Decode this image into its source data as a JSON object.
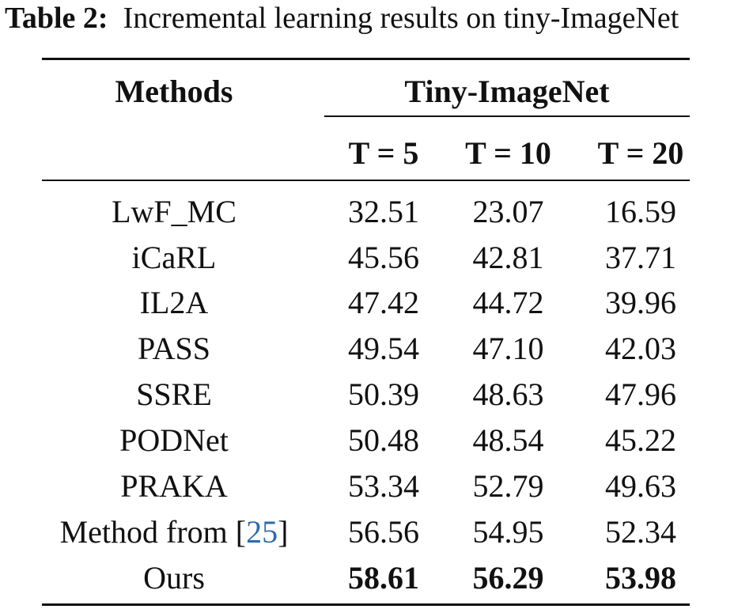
{
  "caption": {
    "label": "Table 2:",
    "text": "Incremental learning results on tiny-ImageNet"
  },
  "table": {
    "header": {
      "methods": "Methods",
      "group": "Tiny-ImageNet",
      "columns": [
        "T = 5",
        "T = 10",
        "T = 20"
      ]
    },
    "rows": [
      {
        "method": "LwF_MC",
        "values": [
          "32.51",
          "23.07",
          "16.59"
        ]
      },
      {
        "method": "iCaRL",
        "values": [
          "45.56",
          "42.81",
          "37.71"
        ]
      },
      {
        "method": "IL2A",
        "values": [
          "47.42",
          "44.72",
          "39.96"
        ]
      },
      {
        "method": "PASS",
        "values": [
          "49.54",
          "47.10",
          "42.03"
        ]
      },
      {
        "method": "SSRE",
        "values": [
          "50.39",
          "48.63",
          "47.96"
        ]
      },
      {
        "method": "PODNet",
        "values": [
          "50.48",
          "48.54",
          "45.22"
        ]
      },
      {
        "method": "PRAKA",
        "values": [
          "53.34",
          "52.79",
          "49.63"
        ]
      },
      {
        "method_prefix": "Method from [",
        "method_ref": "25",
        "method_suffix": "]",
        "values": [
          "56.56",
          "54.95",
          "52.34"
        ]
      },
      {
        "method": "Ours",
        "values": [
          "58.61",
          "56.29",
          "53.98"
        ]
      }
    ]
  },
  "colors": {
    "text": "#111111",
    "reference_link": "#2a6ab0"
  }
}
